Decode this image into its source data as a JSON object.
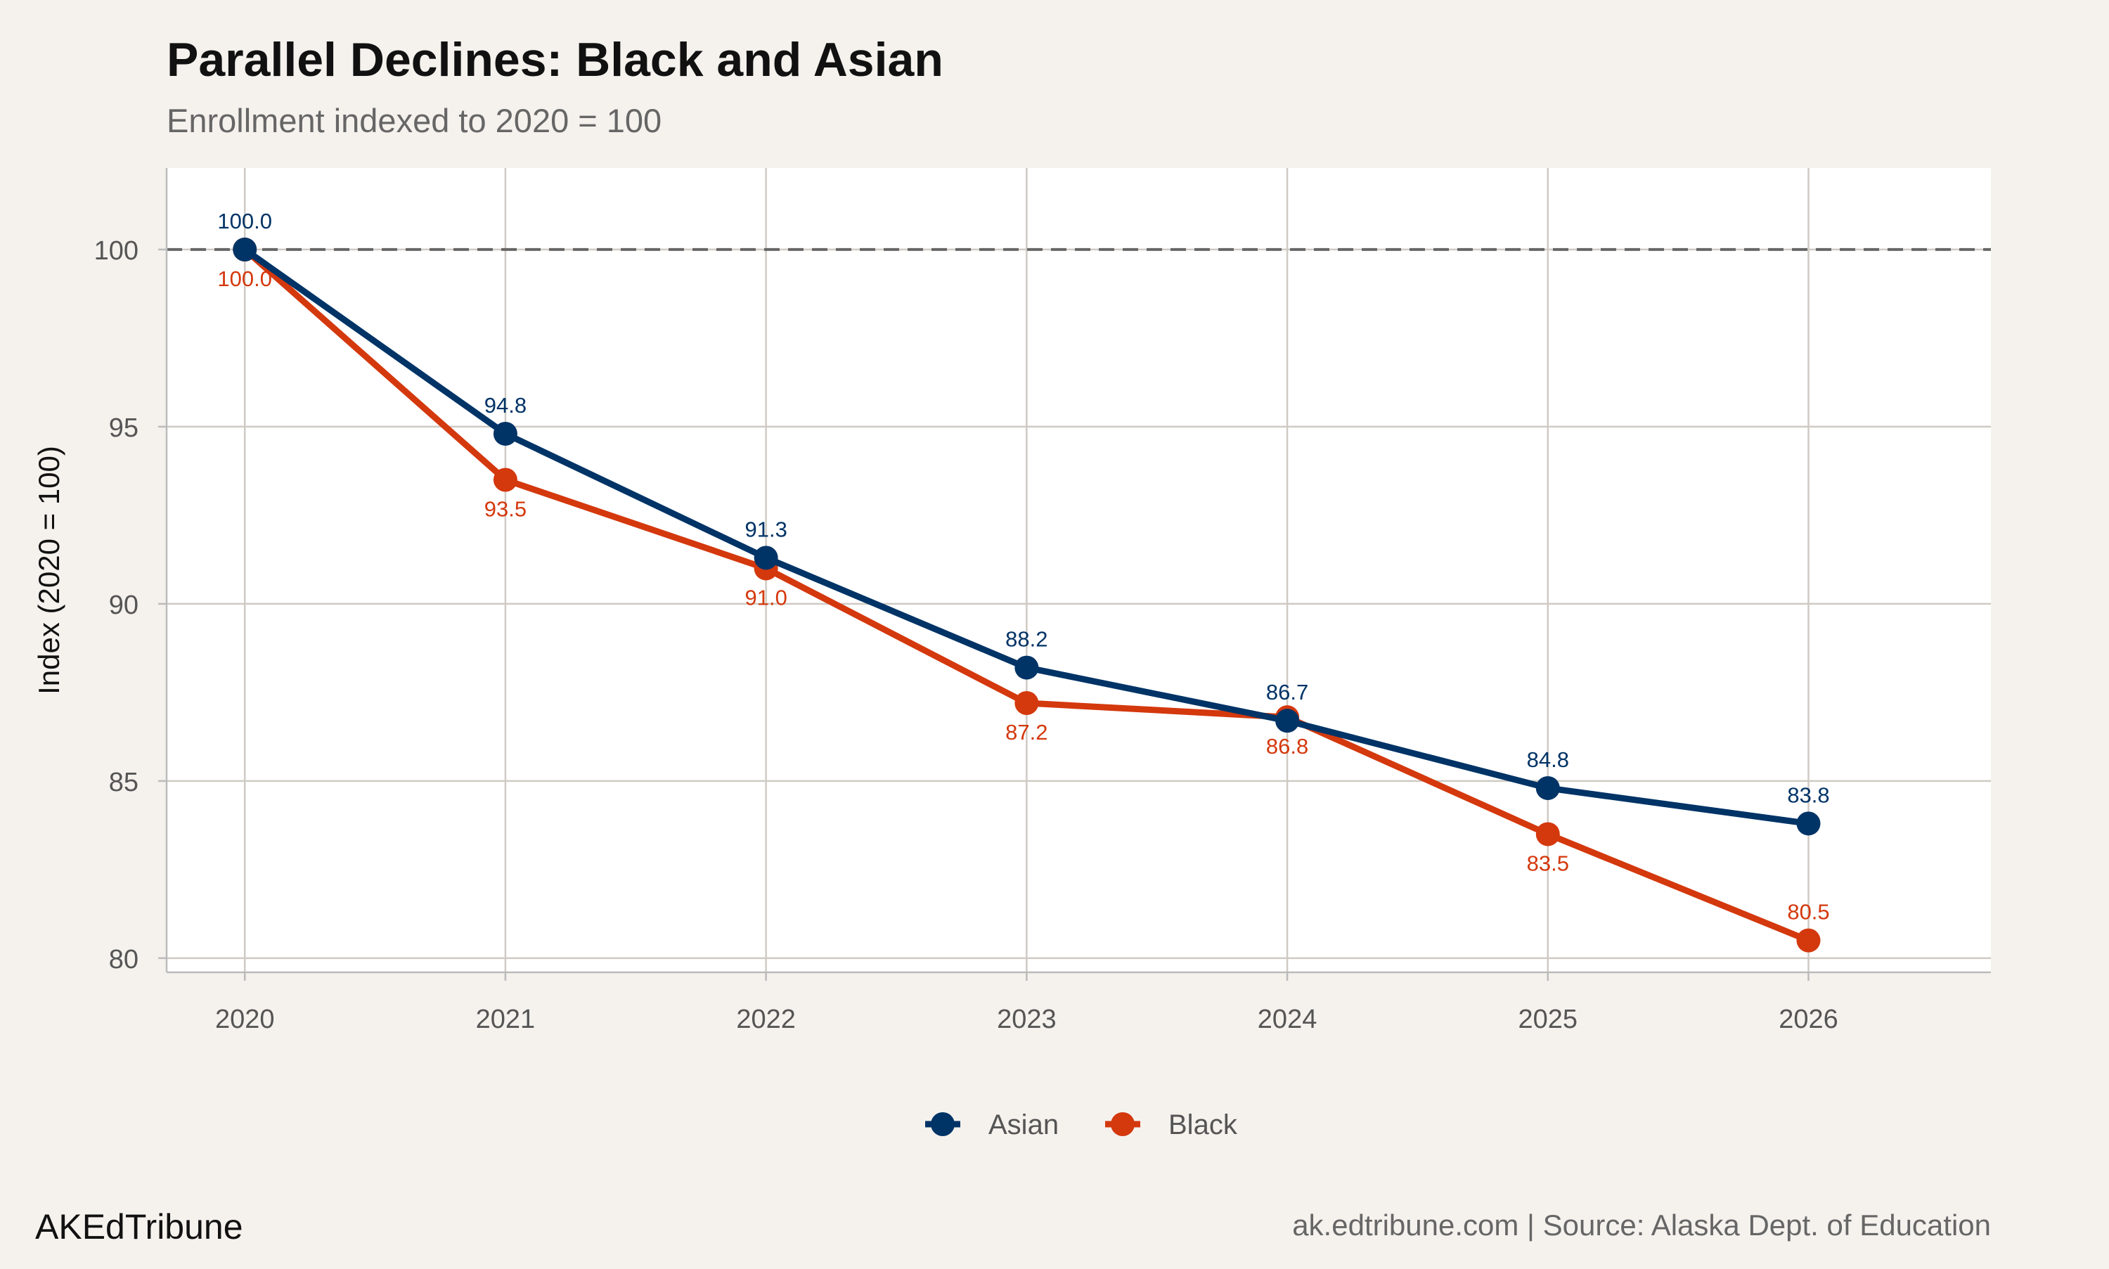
{
  "chart_data": {
    "type": "line",
    "title": "Parallel Declines: Black and Asian",
    "subtitle": "Enrollment indexed to 2020 = 100",
    "xlabel": "",
    "ylabel": "Index (2020 = 100)",
    "x": [
      2020,
      2021,
      2022,
      2023,
      2024,
      2025,
      2026
    ],
    "x_tick_labels": [
      "2020",
      "2021",
      "2022",
      "2023",
      "2024",
      "2025",
      "2026"
    ],
    "y_ticks": [
      80,
      85,
      90,
      95,
      100
    ],
    "y_tick_labels": [
      "80",
      "85",
      "90",
      "95",
      "100"
    ],
    "ylim": [
      79.6,
      102.3
    ],
    "xlim": [
      2019.7,
      2026.7
    ],
    "reference_line": {
      "y": 100,
      "style": "dashed",
      "color": "#666666"
    },
    "grid": true,
    "legend_position": "bottom",
    "series": [
      {
        "name": "Black",
        "color": "#d4380d",
        "values": [
          100.0,
          93.5,
          91.0,
          87.2,
          86.8,
          83.5,
          80.5
        ],
        "labels": [
          "100.0",
          "93.5",
          "91.0",
          "87.2",
          "86.8",
          "83.5",
          "80.5"
        ]
      },
      {
        "name": "Asian",
        "color": "#003366",
        "values": [
          100.0,
          94.8,
          91.3,
          88.2,
          86.7,
          84.8,
          83.8
        ],
        "labels": [
          "100.0",
          "94.8",
          "91.3",
          "88.2",
          "86.7",
          "84.8",
          "83.8"
        ]
      }
    ],
    "legend": [
      "Asian",
      "Black"
    ]
  },
  "footer": {
    "brand": "AKEdTribune",
    "source": "ak.edtribune.com | Source: Alaska Dept. of Education"
  }
}
